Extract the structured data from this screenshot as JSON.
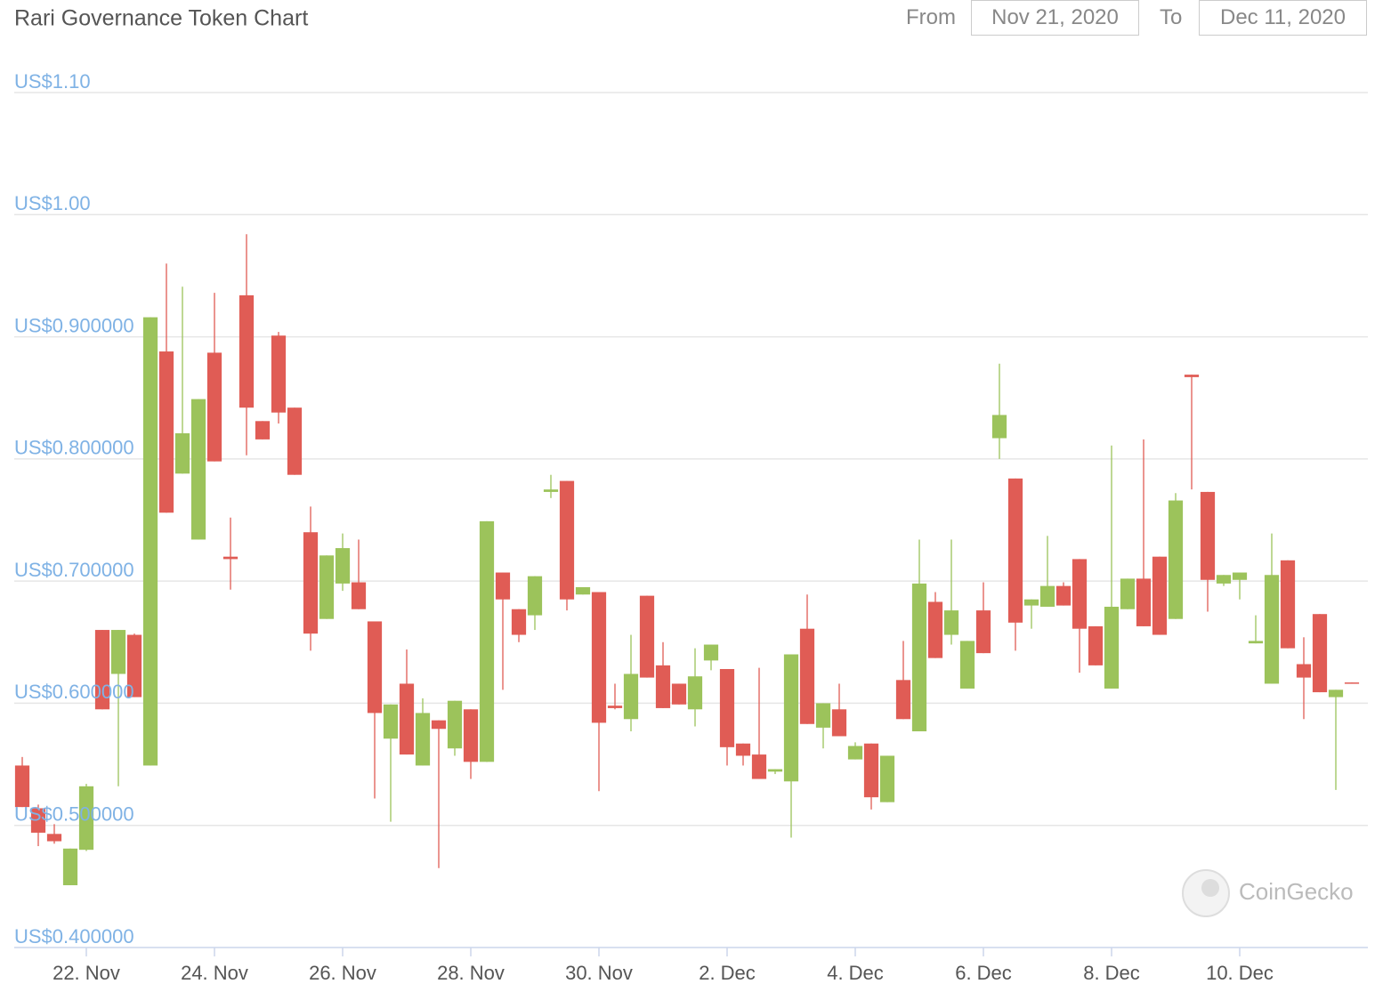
{
  "controls": {
    "from_label": "From",
    "from_date": "Nov 21, 2020",
    "to_label": "To",
    "to_date": "Dec 11, 2020"
  },
  "watermark": "CoinGecko",
  "chart_data": {
    "type": "candlestick",
    "title": "Rari Governance Token Chart",
    "up_color": "#9cc35b",
    "down_color": "#e05c55",
    "grid": true,
    "x": [
      0,
      0.25,
      0.5,
      0.75,
      1,
      1.25,
      1.5,
      1.75,
      2,
      2.25,
      2.5,
      2.75,
      3,
      3.25,
      3.5,
      3.75,
      4,
      4.25,
      4.5,
      4.75,
      5,
      5.25,
      5.5,
      5.75,
      6,
      6.25,
      6.5,
      6.75,
      7,
      7.25,
      7.5,
      7.75,
      8,
      8.25,
      8.5,
      8.75,
      9,
      9.25,
      9.5,
      9.75,
      10,
      10.25,
      10.5,
      10.75,
      11,
      11.25,
      11.5,
      11.75,
      12,
      12.25,
      12.5,
      12.75,
      13,
      13.25,
      13.5,
      13.75,
      14,
      14.25,
      14.5,
      14.75,
      15,
      15.25,
      15.5,
      15.75,
      16,
      16.25,
      16.5,
      16.75,
      17,
      17.25,
      17.5,
      17.75,
      18,
      18.25,
      18.5,
      18.75,
      19,
      19.25,
      19.5,
      19.75,
      20,
      20.25,
      20.5,
      20.75
    ],
    "open": [
      0.549,
      0.514,
      0.493,
      0.451,
      0.48,
      0.66,
      0.624,
      0.656,
      0.549,
      0.888,
      0.788,
      0.734,
      0.887,
      0.72,
      0.934,
      0.831,
      0.901,
      0.842,
      0.74,
      0.669,
      0.698,
      0.699,
      0.667,
      0.571,
      0.616,
      0.549,
      0.586,
      0.563,
      0.595,
      0.552,
      0.707,
      0.677,
      0.672,
      0.773,
      0.782,
      0.689,
      0.691,
      0.598,
      0.587,
      0.688,
      0.631,
      0.616,
      0.595,
      0.635,
      0.628,
      0.567,
      0.558,
      0.544,
      0.536,
      0.661,
      0.58,
      0.595,
      0.554,
      0.567,
      0.519,
      0.619,
      0.577,
      0.683,
      0.656,
      0.612,
      0.676,
      0.817,
      0.784,
      0.68,
      0.679,
      0.696,
      0.718,
      0.663,
      0.612,
      0.677,
      0.702,
      0.72,
      0.669,
      0.869,
      0.773,
      0.698,
      0.701,
      0.649,
      0.616,
      0.717,
      0.632,
      0.673,
      0.605,
      0.617
    ],
    "high": [
      0.556,
      0.517,
      0.501,
      0.481,
      0.534,
      0.66,
      0.66,
      0.657,
      0.916,
      0.96,
      0.941,
      0.849,
      0.936,
      0.752,
      0.984,
      0.831,
      0.904,
      0.842,
      0.761,
      0.721,
      0.739,
      0.734,
      0.667,
      0.599,
      0.644,
      0.604,
      0.586,
      0.602,
      0.595,
      0.749,
      0.707,
      0.677,
      0.704,
      0.787,
      0.782,
      0.695,
      0.691,
      0.616,
      0.656,
      0.688,
      0.65,
      0.616,
      0.645,
      0.648,
      0.628,
      0.567,
      0.629,
      0.546,
      0.64,
      0.689,
      0.6,
      0.616,
      0.568,
      0.567,
      0.557,
      0.651,
      0.734,
      0.691,
      0.734,
      0.651,
      0.699,
      0.878,
      0.784,
      0.685,
      0.737,
      0.699,
      0.718,
      0.663,
      0.811,
      0.702,
      0.816,
      0.72,
      0.772,
      0.869,
      0.773,
      0.705,
      0.707,
      0.672,
      0.739,
      0.717,
      0.654,
      0.673,
      0.611,
      0.617
    ],
    "low": [
      0.515,
      0.483,
      0.485,
      0.451,
      0.479,
      0.595,
      0.532,
      0.605,
      0.549,
      0.756,
      0.788,
      0.734,
      0.798,
      0.693,
      0.803,
      0.816,
      0.829,
      0.787,
      0.643,
      0.669,
      0.692,
      0.677,
      0.522,
      0.503,
      0.558,
      0.549,
      0.465,
      0.557,
      0.538,
      0.552,
      0.611,
      0.65,
      0.66,
      0.768,
      0.676,
      0.689,
      0.528,
      0.595,
      0.577,
      0.621,
      0.596,
      0.599,
      0.581,
      0.627,
      0.549,
      0.549,
      0.538,
      0.542,
      0.49,
      0.583,
      0.563,
      0.573,
      0.554,
      0.513,
      0.519,
      0.587,
      0.577,
      0.637,
      0.648,
      0.612,
      0.641,
      0.8,
      0.643,
      0.661,
      0.679,
      0.68,
      0.625,
      0.631,
      0.612,
      0.677,
      0.663,
      0.656,
      0.669,
      0.775,
      0.675,
      0.696,
      0.685,
      0.649,
      0.616,
      0.645,
      0.587,
      0.609,
      0.529,
      0.616
    ],
    "close": [
      0.515,
      0.494,
      0.487,
      0.481,
      0.532,
      0.595,
      0.66,
      0.605,
      0.916,
      0.756,
      0.821,
      0.849,
      0.798,
      0.718,
      0.842,
      0.816,
      0.838,
      0.787,
      0.657,
      0.721,
      0.727,
      0.677,
      0.592,
      0.599,
      0.558,
      0.592,
      0.579,
      0.602,
      0.552,
      0.749,
      0.685,
      0.656,
      0.704,
      0.775,
      0.685,
      0.695,
      0.584,
      0.596,
      0.624,
      0.621,
      0.596,
      0.599,
      0.622,
      0.648,
      0.564,
      0.557,
      0.538,
      0.546,
      0.64,
      0.583,
      0.6,
      0.573,
      0.565,
      0.523,
      0.557,
      0.587,
      0.698,
      0.637,
      0.676,
      0.651,
      0.641,
      0.836,
      0.666,
      0.685,
      0.696,
      0.68,
      0.661,
      0.631,
      0.679,
      0.702,
      0.663,
      0.656,
      0.766,
      0.867,
      0.701,
      0.705,
      0.707,
      0.651,
      0.705,
      0.645,
      0.621,
      0.609,
      0.611,
      0.616
    ],
    "xlim": [
      -0.125,
      21
    ],
    "xticks": [
      {
        "value": 1,
        "label": "22. Nov"
      },
      {
        "value": 3,
        "label": "24. Nov"
      },
      {
        "value": 5,
        "label": "26. Nov"
      },
      {
        "value": 7,
        "label": "28. Nov"
      },
      {
        "value": 9,
        "label": "30. Nov"
      },
      {
        "value": 11,
        "label": "2. Dec"
      },
      {
        "value": 13,
        "label": "4. Dec"
      },
      {
        "value": 15,
        "label": "6. Dec"
      },
      {
        "value": 17,
        "label": "8. Dec"
      },
      {
        "value": 19,
        "label": "10. Dec"
      }
    ],
    "ylim": [
      0.4,
      1.1
    ],
    "yticks": [
      {
        "value": 0.4,
        "label": "US$0.400000"
      },
      {
        "value": 0.5,
        "label": "US$0.500000"
      },
      {
        "value": 0.6,
        "label": "US$0.600000"
      },
      {
        "value": 0.7,
        "label": "US$0.700000"
      },
      {
        "value": 0.8,
        "label": "US$0.800000"
      },
      {
        "value": 0.9,
        "label": "US$0.900000"
      },
      {
        "value": 1.0,
        "label": "US$1.00"
      },
      {
        "value": 1.1,
        "label": "US$1.10"
      }
    ]
  }
}
